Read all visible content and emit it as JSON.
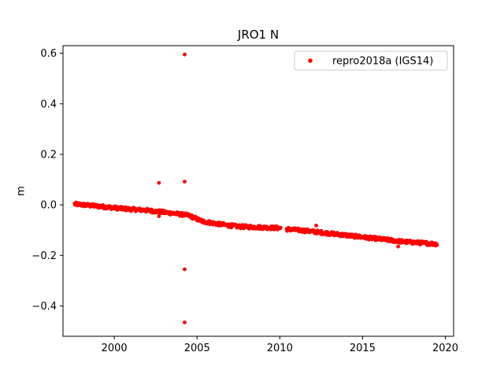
{
  "chart_data": {
    "type": "scatter",
    "title": "JRO1 N",
    "xlabel": "",
    "ylabel": "m",
    "xlim": [
      1996.9,
      2020.5
    ],
    "ylim": [
      -0.52,
      0.63
    ],
    "xticks": [
      2000,
      2005,
      2010,
      2015,
      2020
    ],
    "yticks": [
      -0.4,
      -0.2,
      0.0,
      0.2,
      0.4,
      0.6
    ],
    "xtick_labels": [
      "2000",
      "2005",
      "2010",
      "2015",
      "2020"
    ],
    "ytick_labels": [
      "−0.4",
      "−0.2",
      "0.0",
      "0.2",
      "0.4",
      "0.6"
    ],
    "grid": false,
    "legend_position": "upper right",
    "colors": {
      "series": "#ff0000",
      "axes": "#000000"
    },
    "series": [
      {
        "name": "repro2018a (IGS14)",
        "marker": "dot",
        "trend": [
          {
            "x": 1997.6,
            "y": 0.003
          },
          {
            "x": 1999.0,
            "y": -0.005
          },
          {
            "x": 2000.5,
            "y": -0.015
          },
          {
            "x": 2002.0,
            "y": -0.022
          },
          {
            "x": 2003.5,
            "y": -0.033
          },
          {
            "x": 2004.5,
            "y": -0.042
          },
          {
            "x": 2005.3,
            "y": -0.065
          },
          {
            "x": 2006.5,
            "y": -0.078
          },
          {
            "x": 2007.5,
            "y": -0.086
          },
          {
            "x": 2008.5,
            "y": -0.088
          },
          {
            "x": 2010.0,
            "y": -0.092
          },
          {
            "x": 2010.4,
            "y": -0.096
          },
          {
            "x": 2011.5,
            "y": -0.102
          },
          {
            "x": 2013.0,
            "y": -0.113
          },
          {
            "x": 2014.5,
            "y": -0.124
          },
          {
            "x": 2016.0,
            "y": -0.135
          },
          {
            "x": 2017.5,
            "y": -0.146
          },
          {
            "x": 2019.5,
            "y": -0.155
          }
        ],
        "gaps": [
          [
            2010.05,
            2010.4
          ]
        ],
        "outliers": [
          {
            "x": 2002.7,
            "y": 0.087
          },
          {
            "x": 2004.25,
            "y": 0.595
          },
          {
            "x": 2004.25,
            "y": 0.092
          },
          {
            "x": 2004.25,
            "y": -0.255
          },
          {
            "x": 2004.25,
            "y": -0.465
          },
          {
            "x": 2002.7,
            "y": -0.045
          },
          {
            "x": 2012.2,
            "y": -0.082
          },
          {
            "x": 2017.15,
            "y": -0.165
          }
        ]
      }
    ]
  }
}
